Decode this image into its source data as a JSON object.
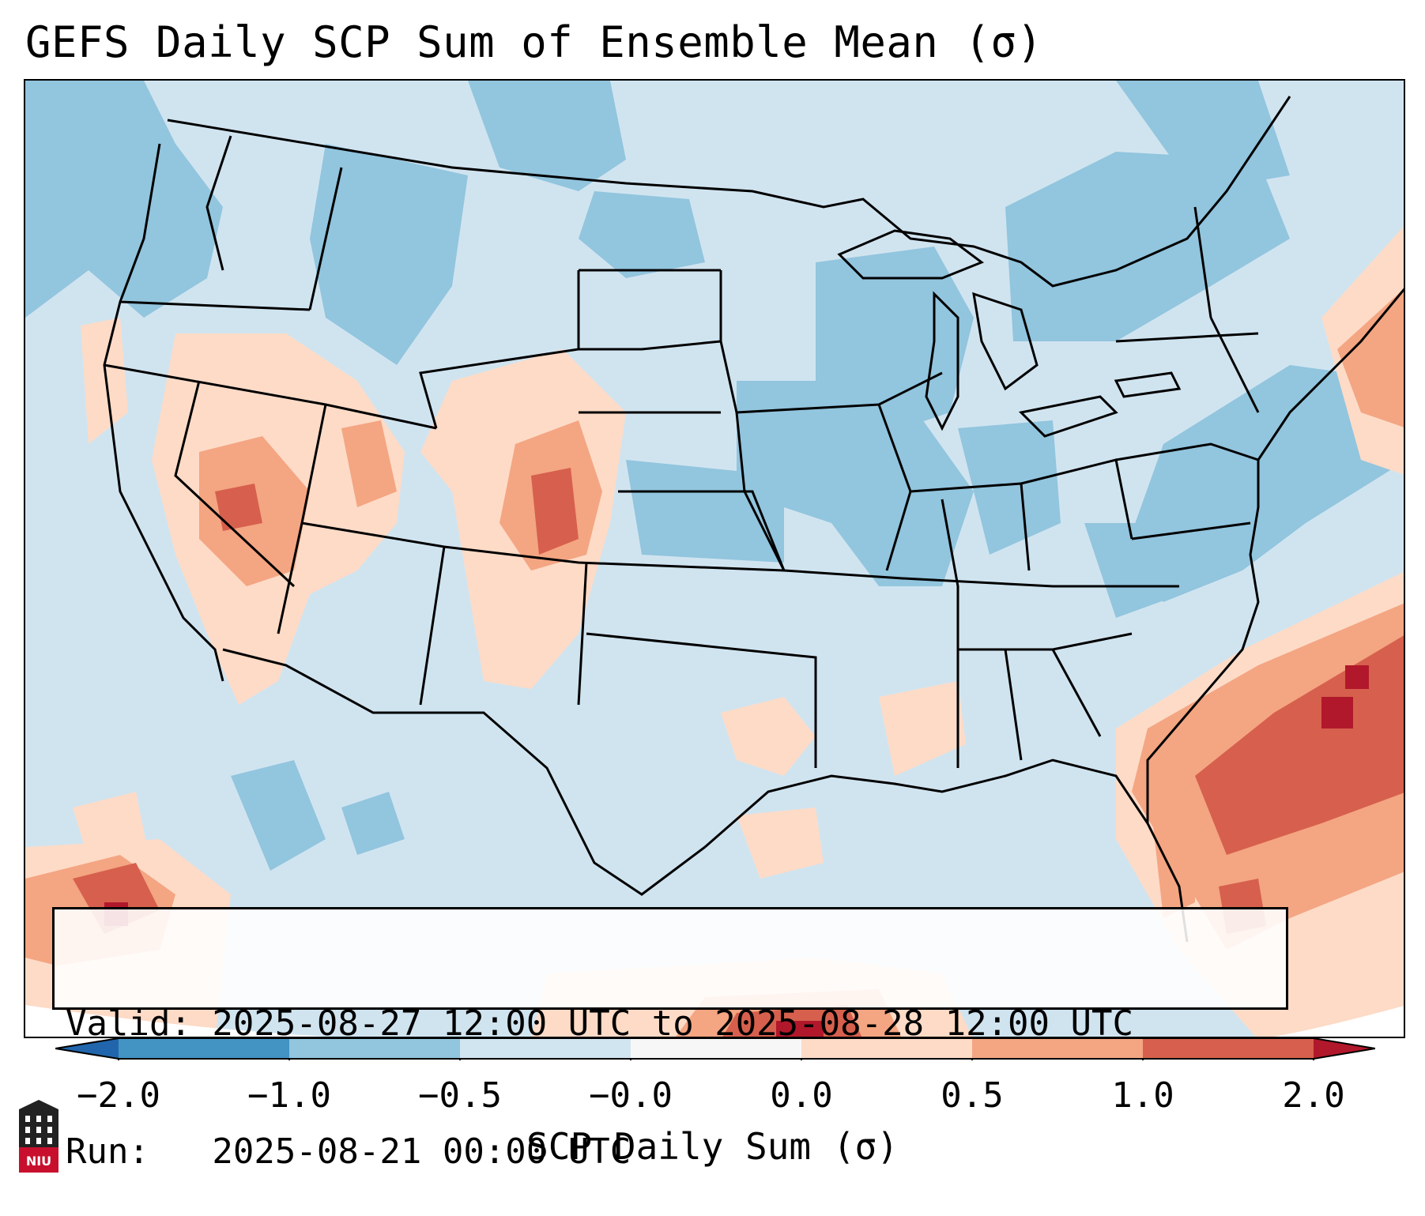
{
  "title": "GEFS Daily SCP Sum of Ensemble Mean (σ)",
  "info": {
    "valid_line": "Valid: 2025-08-27 12:00 UTC to 2025-08-28 12:00 UTC",
    "run_line": "Run:   2025-08-21 00:00 UTC"
  },
  "colorbar": {
    "label": "SCP Daily Sum (σ)",
    "ticks": [
      "−2.0",
      "−1.0",
      "−0.5",
      "−0.0",
      "0.0",
      "0.5",
      "1.0",
      "2.0"
    ],
    "bins": [
      {
        "range": "< -2.0",
        "color": "#2166ac"
      },
      {
        "range": "-2.0 to -1.0",
        "color": "#4393c3"
      },
      {
        "range": "-1.0 to -0.5",
        "color": "#92c5de"
      },
      {
        "range": "-0.5 to -0.0",
        "color": "#d1e5f0"
      },
      {
        "range": "-0.0 to 0.0",
        "color": "#f7f7f7"
      },
      {
        "range": "0.0 to 0.5",
        "color": "#fddbc7"
      },
      {
        "range": "0.5 to 1.0",
        "color": "#f4a582"
      },
      {
        "range": "1.0 to 2.0",
        "color": "#d6604d"
      },
      {
        "range": "> 2.0",
        "color": "#b2182b"
      }
    ]
  },
  "logo": {
    "text": "NIU",
    "color": "#c8102e"
  },
  "map": {
    "region": "Contiguous United States",
    "background_color": "#d0e4f0",
    "features": [
      {
        "name": "pacific-northwest-negative",
        "value": "-1.0 to -0.5"
      },
      {
        "name": "northern-plains-negative",
        "value": "-1.0 to -0.5"
      },
      {
        "name": "upper-midwest-negative",
        "value": "-1.0 to -0.5"
      },
      {
        "name": "great-basin-positive",
        "value": "0.5 to 1.0"
      },
      {
        "name": "colorado-positive",
        "value": "1.0 to 2.0"
      },
      {
        "name": "atlantic-positive-band",
        "value": "1.0 to 2.0"
      },
      {
        "name": "atlantic-max",
        "value": "> 2.0"
      },
      {
        "name": "eastern-pacific-positive",
        "value": "1.0 to 2.0"
      },
      {
        "name": "gulf-of-mexico-south-positive",
        "value": "> 2.0"
      }
    ]
  }
}
